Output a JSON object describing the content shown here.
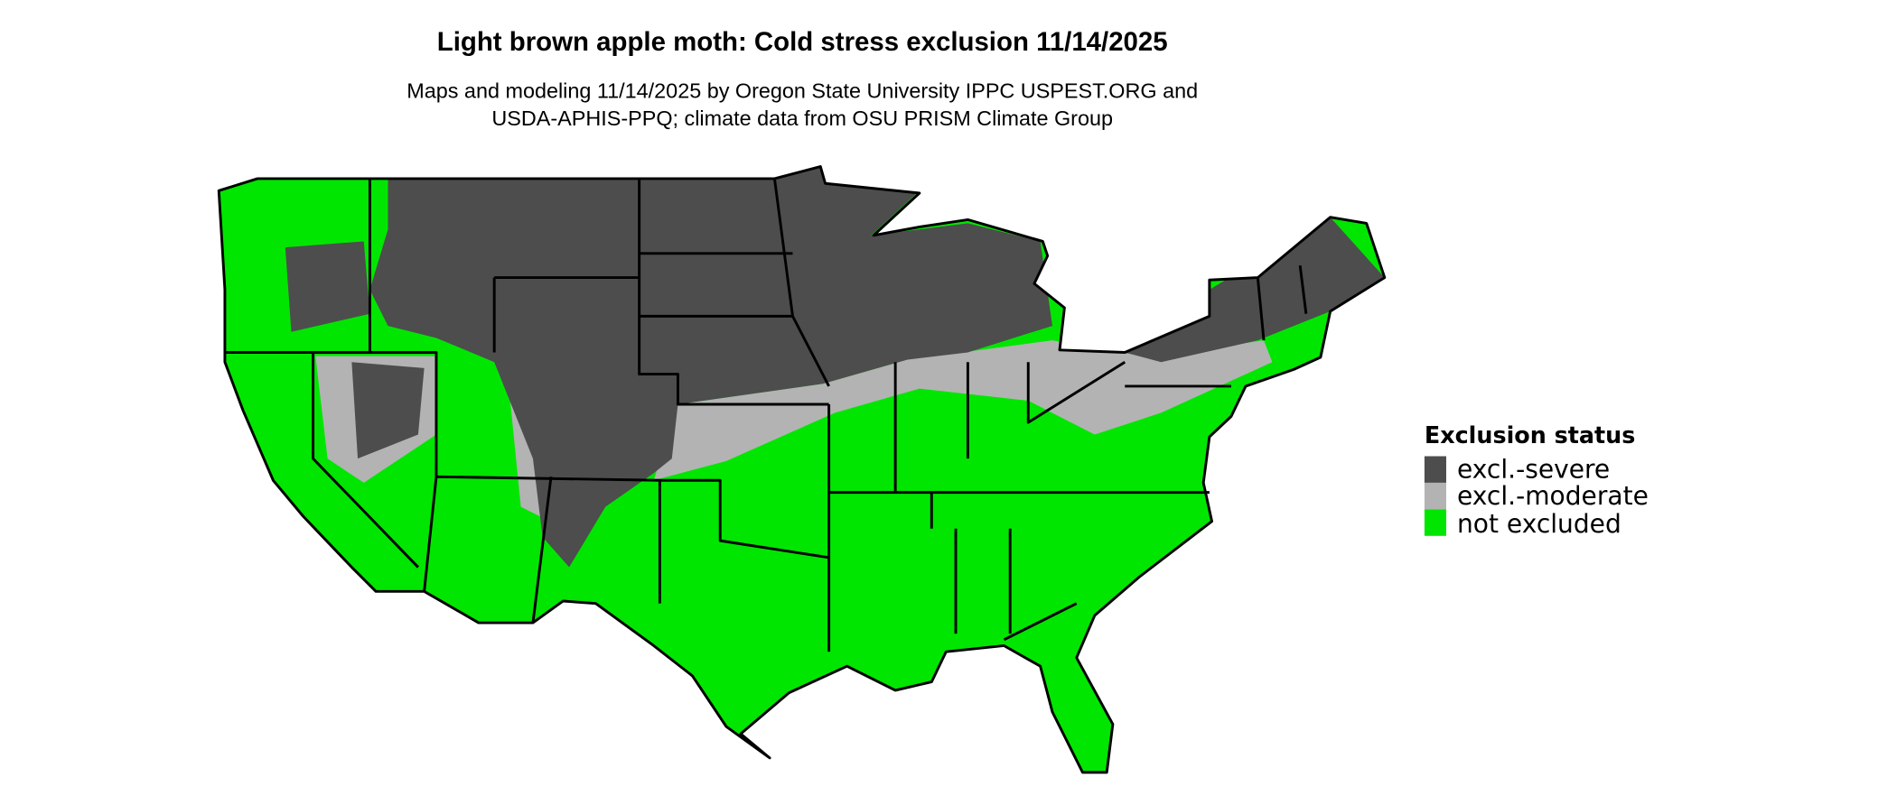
{
  "title": "Light brown apple moth: Cold stress exclusion 11/14/2025",
  "subtitle_line1": "Maps and modeling 11/14/2025 by Oregon State University IPPC USPEST.ORG and",
  "subtitle_line2": "USDA-APHIS-PPQ; climate data from OSU PRISM Climate Group",
  "legend": {
    "title": "Exclusion status",
    "items": [
      {
        "label": "excl.-severe",
        "color": "#4d4d4d"
      },
      {
        "label": "excl.-moderate",
        "color": "#b3b3b3"
      },
      {
        "label": "not excluded",
        "color": "#00e600"
      }
    ]
  },
  "map": {
    "region": "Contiguous United States",
    "border_color": "#000000"
  }
}
